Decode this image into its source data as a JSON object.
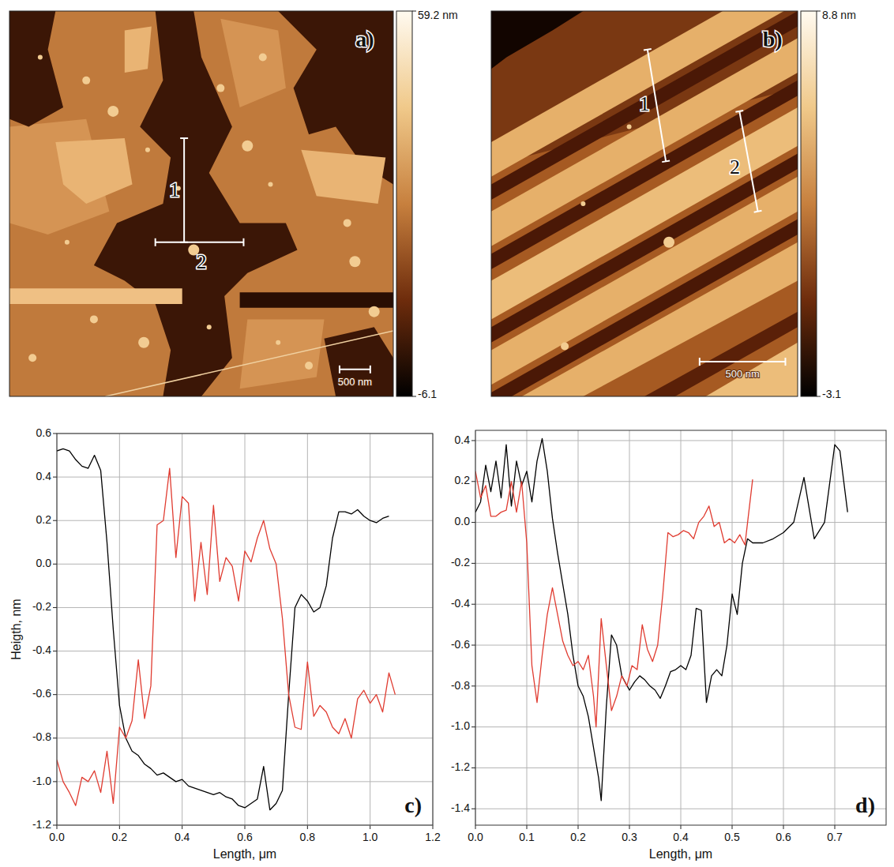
{
  "images": [
    {
      "label": "a)",
      "profiles": [
        "1",
        "2"
      ],
      "scale_bar": "500 nm",
      "colorbar_range": [
        -6.1,
        59.2
      ],
      "colorbar_ticks": [
        {
          "value": 59.2,
          "label": "59.2 nm"
        },
        {
          "value": -6.1,
          "label": "-6.1"
        }
      ]
    },
    {
      "label": "b)",
      "profiles": [
        "1",
        "2"
      ],
      "scale_bar": "500 nm",
      "colorbar_range": [
        -3.1,
        8.8
      ],
      "colorbar_ticks": [
        {
          "value": 8.8,
          "label": "8.8 nm"
        },
        {
          "value": -3.1,
          "label": "-3.1"
        }
      ]
    }
  ],
  "chart_data": [
    {
      "type": "line",
      "panel_label": "c)",
      "x_label": "Length, μm",
      "y_label": "Heigth, nm",
      "xlim": [
        0,
        1.2
      ],
      "xticks": [
        {
          "value": 0,
          "label": "0.0"
        },
        0.2,
        0.4,
        0.6,
        0.8,
        {
          "value": 1,
          "label": "1.0"
        },
        1.2
      ],
      "ylim": [
        -1.2,
        0.6
      ],
      "yticks": [
        -1.2,
        {
          "value": -1,
          "label": "-1.0"
        },
        -0.8,
        -0.6,
        -0.4,
        -0.2,
        {
          "value": 0,
          "label": "0.0"
        },
        0.2,
        0.4,
        0.6
      ],
      "grid": true,
      "series": [
        {
          "color": "#000000",
          "x": [
            0,
            0.02,
            0.04,
            0.06,
            0.08,
            0.1,
            0.12,
            0.14,
            0.16,
            0.18,
            0.2,
            0.22,
            0.24,
            0.26,
            0.28,
            0.3,
            0.32,
            0.34,
            0.36,
            0.38,
            0.4,
            0.42,
            0.44,
            0.46,
            0.48,
            0.5,
            0.52,
            0.54,
            0.56,
            0.58,
            0.6,
            0.62,
            0.64,
            0.66,
            0.68,
            0.7,
            0.72,
            0.74,
            0.76,
            0.78,
            0.8,
            0.82,
            0.84,
            0.86,
            0.88,
            0.9,
            0.92,
            0.94,
            0.96,
            0.98,
            1,
            1.02,
            1.04,
            1.06
          ],
          "values": [
            0.52,
            0.53,
            0.52,
            0.48,
            0.45,
            0.44,
            0.5,
            0.43,
            0.1,
            -0.3,
            -0.65,
            -0.8,
            -0.86,
            -0.88,
            -0.92,
            -0.94,
            -0.97,
            -0.96,
            -0.98,
            -1.0,
            -0.99,
            -1.02,
            -1.03,
            -1.04,
            -1.05,
            -1.06,
            -1.05,
            -1.07,
            -1.08,
            -1.11,
            -1.12,
            -1.1,
            -1.08,
            -0.93,
            -1.13,
            -1.1,
            -1.04,
            -0.6,
            -0.2,
            -0.14,
            -0.17,
            -0.22,
            -0.2,
            -0.1,
            0.12,
            0.24,
            0.24,
            0.23,
            0.25,
            0.22,
            0.2,
            0.19,
            0.21,
            0.22
          ]
        },
        {
          "color": "#e03c31",
          "x": [
            0,
            0.02,
            0.04,
            0.06,
            0.08,
            0.1,
            0.12,
            0.14,
            0.16,
            0.18,
            0.2,
            0.22,
            0.24,
            0.26,
            0.28,
            0.3,
            0.32,
            0.34,
            0.36,
            0.38,
            0.4,
            0.42,
            0.44,
            0.46,
            0.48,
            0.5,
            0.52,
            0.54,
            0.56,
            0.58,
            0.6,
            0.62,
            0.64,
            0.66,
            0.68,
            0.7,
            0.72,
            0.74,
            0.76,
            0.78,
            0.8,
            0.82,
            0.84,
            0.86,
            0.88,
            0.9,
            0.92,
            0.94,
            0.96,
            0.98,
            1,
            1.02,
            1.04,
            1.06,
            1.08
          ],
          "values": [
            -0.9,
            -1.0,
            -1.05,
            -1.11,
            -0.98,
            -1.0,
            -0.95,
            -1.05,
            -0.86,
            -1.1,
            -0.75,
            -0.8,
            -0.72,
            -0.44,
            -0.71,
            -0.56,
            0.18,
            0.2,
            0.44,
            0.03,
            0.31,
            0.28,
            -0.17,
            0.1,
            -0.14,
            0.27,
            -0.08,
            0.03,
            -0.01,
            -0.17,
            0.06,
            0.01,
            0.12,
            0.2,
            0.07,
            0.0,
            -0.25,
            -0.6,
            -0.75,
            -0.76,
            -0.45,
            -0.7,
            -0.65,
            -0.68,
            -0.75,
            -0.78,
            -0.71,
            -0.8,
            -0.62,
            -0.58,
            -0.64,
            -0.6,
            -0.68,
            -0.5,
            -0.6
          ]
        }
      ]
    },
    {
      "type": "line",
      "panel_label": "d)",
      "x_label": "Length, μm",
      "xlim": [
        0,
        0.8
      ],
      "xticks": [
        {
          "value": 0,
          "label": "0.0"
        },
        0.1,
        0.2,
        0.3,
        0.4,
        0.5,
        0.6,
        0.7
      ],
      "ylim": [
        -1.48,
        0.45
      ],
      "yticks": [
        -1.4,
        -1.2,
        {
          "value": -1,
          "label": "-1.0"
        },
        -0.8,
        -0.6,
        -0.4,
        -0.2,
        {
          "value": 0,
          "label": "0.0"
        },
        0.2,
        0.4
      ],
      "grid": true,
      "series": [
        {
          "color": "#000000",
          "x": [
            0,
            0.01,
            0.02,
            0.03,
            0.04,
            0.05,
            0.06,
            0.07,
            0.08,
            0.09,
            0.1,
            0.11,
            0.12,
            0.13,
            0.14,
            0.15,
            0.16,
            0.17,
            0.18,
            0.19,
            0.2,
            0.21,
            0.22,
            0.23,
            0.24,
            0.245,
            0.255,
            0.265,
            0.275,
            0.285,
            0.3,
            0.31,
            0.32,
            0.33,
            0.34,
            0.35,
            0.36,
            0.37,
            0.38,
            0.39,
            0.4,
            0.41,
            0.42,
            0.43,
            0.44,
            0.45,
            0.46,
            0.47,
            0.48,
            0.49,
            0.5,
            0.51,
            0.52,
            0.53,
            0.54,
            0.56,
            0.58,
            0.6,
            0.62,
            0.64,
            0.66,
            0.68,
            0.7,
            0.71,
            0.725
          ],
          "values": [
            0.05,
            0.1,
            0.28,
            0.15,
            0.3,
            0.12,
            0.38,
            0.08,
            0.3,
            0.18,
            0.25,
            0.1,
            0.3,
            0.41,
            0.25,
            0.02,
            -0.15,
            -0.3,
            -0.45,
            -0.65,
            -0.8,
            -0.85,
            -0.95,
            -1.1,
            -1.25,
            -1.36,
            -0.9,
            -0.55,
            -0.6,
            -0.75,
            -0.82,
            -0.78,
            -0.75,
            -0.77,
            -0.8,
            -0.82,
            -0.86,
            -0.8,
            -0.73,
            -0.72,
            -0.7,
            -0.72,
            -0.65,
            -0.42,
            -0.43,
            -0.88,
            -0.75,
            -0.72,
            -0.75,
            -0.6,
            -0.35,
            -0.45,
            -0.2,
            -0.08,
            -0.1,
            -0.1,
            -0.08,
            -0.05,
            0,
            0.22,
            -0.08,
            0,
            0.38,
            0.35,
            0.05
          ]
        },
        {
          "color": "#e03c31",
          "x": [
            0,
            0.01,
            0.02,
            0.03,
            0.04,
            0.05,
            0.06,
            0.07,
            0.08,
            0.09,
            0.1,
            0.11,
            0.12,
            0.13,
            0.14,
            0.15,
            0.16,
            0.17,
            0.18,
            0.19,
            0.2,
            0.21,
            0.22,
            0.23,
            0.235,
            0.245,
            0.255,
            0.265,
            0.275,
            0.285,
            0.295,
            0.305,
            0.315,
            0.325,
            0.335,
            0.345,
            0.355,
            0.365,
            0.375,
            0.385,
            0.395,
            0.405,
            0.415,
            0.425,
            0.435,
            0.445,
            0.455,
            0.465,
            0.475,
            0.485,
            0.495,
            0.505,
            0.515,
            0.525,
            0.54
          ],
          "values": [
            0.25,
            0.12,
            0.18,
            0.03,
            0.03,
            0.05,
            0.06,
            0.2,
            0.05,
            0.2,
            -0.1,
            -0.7,
            -0.88,
            -0.65,
            -0.45,
            -0.32,
            -0.45,
            -0.58,
            -0.65,
            -0.7,
            -0.68,
            -0.72,
            -0.65,
            -0.85,
            -1.0,
            -0.47,
            -0.7,
            -0.92,
            -0.85,
            -0.75,
            -0.8,
            -0.7,
            -0.72,
            -0.5,
            -0.62,
            -0.68,
            -0.6,
            -0.35,
            -0.05,
            -0.07,
            -0.06,
            -0.04,
            -0.05,
            -0.08,
            0.0,
            0.03,
            0.08,
            -0.02,
            0.0,
            -0.1,
            -0.08,
            -0.1,
            -0.06,
            -0.11,
            0.21
          ]
        }
      ]
    }
  ]
}
